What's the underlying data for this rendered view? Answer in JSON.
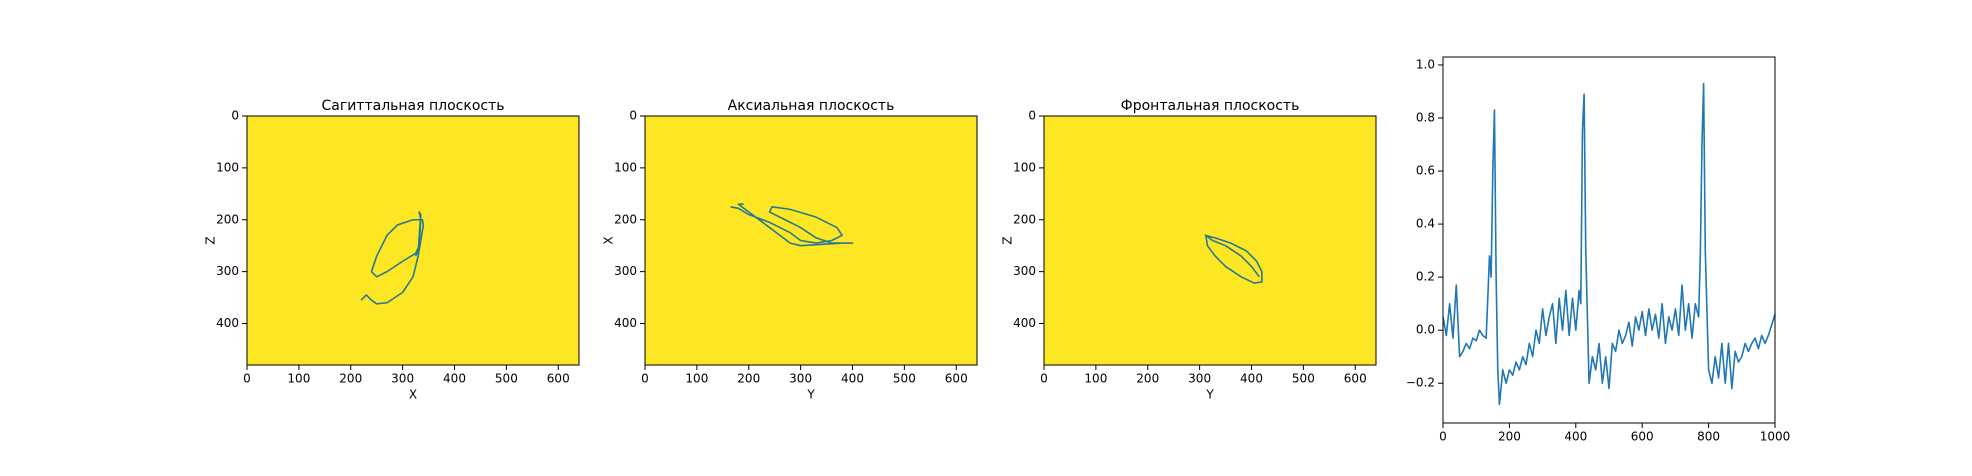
{
  "chart_data": [
    {
      "type": "line",
      "title": "Сагиттальная плоскость",
      "xlabel": "X",
      "ylabel": "Z",
      "background": "#fde725",
      "x": [
        220,
        230,
        240,
        250,
        270,
        300,
        320,
        330,
        335,
        340,
        338,
        320,
        290,
        270,
        250,
        240,
        250,
        270,
        300,
        325,
        332,
        335,
        332,
        335,
        330,
        325
      ],
      "series": [
        {
          "color": "#2a788e",
          "values": [
            355,
            345,
            355,
            362,
            360,
            340,
            310,
            270,
            240,
            210,
            200,
            200,
            210,
            230,
            270,
            300,
            310,
            300,
            280,
            265,
            250,
            200,
            185,
            190,
            260,
            270
          ]
        }
      ],
      "xlim": [
        0,
        640
      ],
      "ylim": [
        480,
        0
      ],
      "xticks": [
        0,
        100,
        200,
        300,
        400,
        500,
        600
      ],
      "yticks": [
        0,
        100,
        200,
        300,
        400
      ]
    },
    {
      "type": "line",
      "title": "Аксиальная плоскость",
      "xlabel": "Y",
      "ylabel": "X",
      "background": "#fde725",
      "x": [
        165,
        180,
        200,
        240,
        280,
        300,
        330,
        360,
        380,
        370,
        330,
        280,
        245,
        240,
        270,
        300,
        330,
        360,
        400,
        380,
        300,
        280,
        180,
        190
      ],
      "series": [
        {
          "color": "#2a788e",
          "values": [
            175,
            178,
            190,
            205,
            225,
            240,
            245,
            240,
            230,
            215,
            195,
            180,
            175,
            185,
            200,
            215,
            235,
            245,
            245,
            245,
            250,
            245,
            170,
            170
          ]
        }
      ],
      "xlim": [
        0,
        640
      ],
      "ylim": [
        480,
        0
      ],
      "xticks": [
        0,
        100,
        200,
        300,
        400,
        500,
        600
      ],
      "yticks": [
        0,
        100,
        200,
        300,
        400
      ]
    },
    {
      "type": "line",
      "title": "Фронтальная плоскость",
      "xlabel": "Y",
      "ylabel": "Z",
      "background": "#fde725",
      "x": [
        310,
        330,
        360,
        390,
        410,
        420,
        420,
        405,
        380,
        350,
        330,
        315,
        312,
        325,
        350,
        380,
        400,
        415
      ],
      "series": [
        {
          "color": "#2a788e",
          "values": [
            230,
            235,
            245,
            260,
            280,
            300,
            320,
            322,
            310,
            290,
            270,
            250,
            230,
            240,
            250,
            270,
            290,
            310
          ]
        }
      ],
      "xlim": [
        0,
        640
      ],
      "ylim": [
        480,
        0
      ],
      "xticks": [
        0,
        100,
        200,
        300,
        400,
        500,
        600
      ],
      "yticks": [
        0,
        100,
        200,
        300,
        400
      ]
    },
    {
      "type": "line",
      "x": [
        0,
        10,
        20,
        30,
        40,
        50,
        60,
        70,
        80,
        90,
        100,
        110,
        120,
        130,
        140,
        145,
        150,
        155,
        160,
        165,
        170,
        180,
        190,
        200,
        210,
        220,
        230,
        240,
        250,
        260,
        270,
        280,
        290,
        300,
        310,
        320,
        330,
        340,
        350,
        360,
        370,
        380,
        390,
        400,
        410,
        415,
        420,
        425,
        430,
        440,
        450,
        460,
        470,
        480,
        490,
        500,
        510,
        520,
        530,
        540,
        550,
        560,
        570,
        580,
        590,
        600,
        610,
        620,
        630,
        640,
        650,
        660,
        670,
        680,
        690,
        700,
        710,
        720,
        730,
        740,
        750,
        760,
        770,
        775,
        780,
        785,
        790,
        800,
        810,
        820,
        830,
        840,
        850,
        860,
        870,
        880,
        890,
        900,
        910,
        920,
        930,
        940,
        950,
        960,
        970,
        980,
        990,
        1000
      ],
      "series": [
        {
          "color": "#1f77b4",
          "values": [
            0.05,
            -0.02,
            0.1,
            -0.03,
            0.17,
            -0.1,
            -0.08,
            -0.05,
            -0.07,
            -0.03,
            -0.04,
            0.0,
            -0.02,
            -0.03,
            0.28,
            0.2,
            0.6,
            0.83,
            0.2,
            -0.15,
            -0.28,
            -0.15,
            -0.2,
            -0.15,
            -0.17,
            -0.12,
            -0.15,
            -0.1,
            -0.13,
            -0.05,
            -0.1,
            0.0,
            -0.05,
            0.08,
            -0.02,
            0.05,
            0.1,
            -0.05,
            0.12,
            0.0,
            0.15,
            -0.02,
            0.12,
            0.0,
            0.15,
            0.1,
            0.75,
            0.89,
            0.3,
            -0.2,
            -0.1,
            -0.15,
            -0.05,
            -0.2,
            -0.1,
            -0.22,
            -0.05,
            -0.08,
            0.0,
            -0.05,
            -0.02,
            0.03,
            -0.06,
            0.05,
            0.0,
            0.07,
            -0.02,
            0.08,
            0.0,
            0.06,
            -0.03,
            0.1,
            -0.05,
            0.05,
            0.0,
            0.08,
            -0.02,
            0.17,
            0.0,
            0.1,
            -0.03,
            0.1,
            0.05,
            0.28,
            0.7,
            0.93,
            0.3,
            -0.15,
            -0.2,
            -0.1,
            -0.18,
            -0.05,
            -0.2,
            -0.05,
            -0.22,
            -0.08,
            -0.12,
            -0.1,
            -0.05,
            -0.08,
            -0.05,
            -0.03,
            -0.07,
            -0.02,
            -0.05,
            -0.02,
            0.02,
            0.06
          ]
        }
      ],
      "xlim": [
        0,
        1000
      ],
      "ylim": [
        -0.35,
        1.03
      ],
      "xticks": [
        0,
        200,
        400,
        600,
        800,
        1000
      ],
      "yticks": [
        {
          "value": -0.2,
          "label": "−0.2"
        },
        {
          "value": 0,
          "label": "0.0"
        },
        0.2,
        0.4,
        0.6,
        0.8,
        {
          "value": 1,
          "label": "1.0"
        }
      ]
    }
  ]
}
